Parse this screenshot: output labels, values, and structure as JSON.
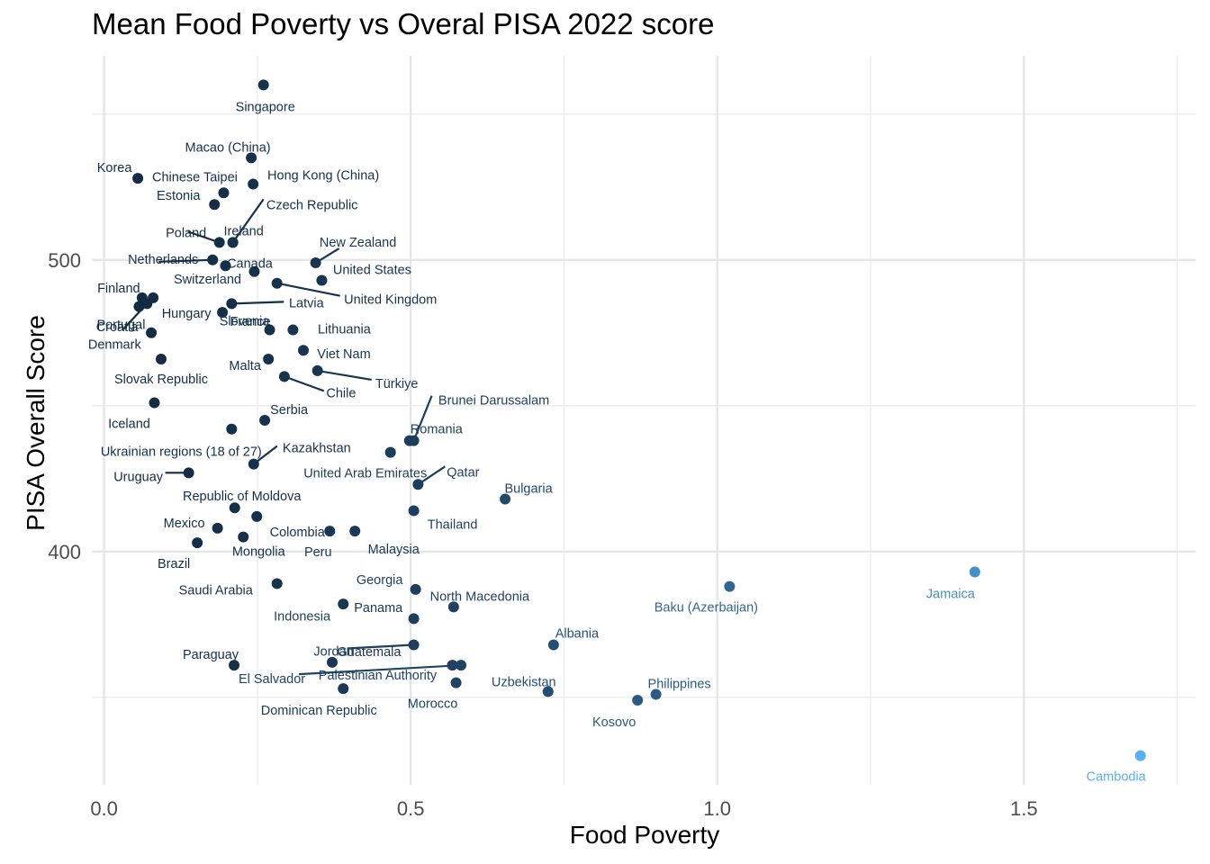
{
  "chart_data": {
    "type": "scatter",
    "title": "Mean Food Poverty vs Overal PISA 2022 score",
    "xlabel": "Food Poverty",
    "ylabel": "PISA Overall Score",
    "xlim": [
      -0.02,
      1.78
    ],
    "ylim": [
      320,
      570
    ],
    "x_ticks": [
      0.0,
      0.5,
      1.0,
      1.5
    ],
    "x_tick_labels": [
      "0.0",
      "0.5",
      "1.0",
      "1.5"
    ],
    "y_ticks": [
      400,
      500
    ],
    "y_tick_labels": [
      "400",
      "500"
    ],
    "grid": true,
    "color_scale": {
      "low": "#132b43",
      "high": "#56b1f7",
      "min": 0.0,
      "max": 1.7
    },
    "points": [
      {
        "label": "Singapore",
        "x": 0.26,
        "y": 560
      },
      {
        "label": "Macao (China)",
        "x": 0.24,
        "y": 535
      },
      {
        "label": "Korea",
        "x": 0.055,
        "y": 528
      },
      {
        "label": "Chinese Taipei",
        "x": 0.195,
        "y": 523
      },
      {
        "label": "Hong Kong (China)",
        "x": 0.243,
        "y": 526
      },
      {
        "label": "Estonia",
        "x": 0.18,
        "y": 519
      },
      {
        "label": "Czech Republic",
        "x": 0.21,
        "y": 506
      },
      {
        "label": "Poland",
        "x": 0.188,
        "y": 506
      },
      {
        "label": "Ireland",
        "x": 0.21,
        "y": 506
      },
      {
        "label": "New Zealand",
        "x": 0.345,
        "y": 499
      },
      {
        "label": "Netherlands",
        "x": 0.177,
        "y": 500
      },
      {
        "label": "Canada",
        "x": 0.198,
        "y": 498
      },
      {
        "label": "United States",
        "x": 0.355,
        "y": 493
      },
      {
        "label": "Switzerland",
        "x": 0.245,
        "y": 496
      },
      {
        "label": "United Kingdom",
        "x": 0.282,
        "y": 492
      },
      {
        "label": "Finland",
        "x": 0.062,
        "y": 487
      },
      {
        "label": "Latvia",
        "x": 0.208,
        "y": 485
      },
      {
        "label": "Portugal",
        "x": 0.057,
        "y": 484
      },
      {
        "label": "Hungary",
        "x": 0.08,
        "y": 487
      },
      {
        "label": "France",
        "x": 0.193,
        "y": 482
      },
      {
        "label": "Denmark",
        "x": 0.07,
        "y": 485
      },
      {
        "label": "Slovenia",
        "x": 0.27,
        "y": 476
      },
      {
        "label": "Lithuania",
        "x": 0.308,
        "y": 476
      },
      {
        "label": "Croatia",
        "x": 0.077,
        "y": 475
      },
      {
        "label": "Viet Nam",
        "x": 0.325,
        "y": 469
      },
      {
        "label": "Slovak Republic",
        "x": 0.093,
        "y": 466
      },
      {
        "label": "Türkiye",
        "x": 0.348,
        "y": 462
      },
      {
        "label": "Malta",
        "x": 0.268,
        "y": 466
      },
      {
        "label": "Chile",
        "x": 0.294,
        "y": 460
      },
      {
        "label": "Brunei Darussalam",
        "x": 0.505,
        "y": 438
      },
      {
        "label": "Iceland",
        "x": 0.082,
        "y": 451
      },
      {
        "label": "Serbia",
        "x": 0.262,
        "y": 445
      },
      {
        "label": "Romania",
        "x": 0.498,
        "y": 438
      },
      {
        "label": "Ukrainian regions (18 of 27)",
        "x": 0.208,
        "y": 442
      },
      {
        "label": "Kazakhstan",
        "x": 0.244,
        "y": 430
      },
      {
        "label": "United Arab Emirates",
        "x": 0.467,
        "y": 434
      },
      {
        "label": "Qatar",
        "x": 0.512,
        "y": 423
      },
      {
        "label": "Uruguay",
        "x": 0.138,
        "y": 427
      },
      {
        "label": "Bulgaria",
        "x": 0.654,
        "y": 418
      },
      {
        "label": "Republic of Moldova",
        "x": 0.213,
        "y": 415
      },
      {
        "label": "Thailand",
        "x": 0.505,
        "y": 414
      },
      {
        "label": "Colombia",
        "x": 0.249,
        "y": 412
      },
      {
        "label": "Mexico",
        "x": 0.185,
        "y": 408
      },
      {
        "label": "Peru",
        "x": 0.368,
        "y": 407
      },
      {
        "label": "Malaysia",
        "x": 0.409,
        "y": 407
      },
      {
        "label": "Mongolia",
        "x": 0.227,
        "y": 405
      },
      {
        "label": "Brazil",
        "x": 0.152,
        "y": 403
      },
      {
        "label": "Jamaica",
        "x": 1.42,
        "y": 393
      },
      {
        "label": "Baku (Azerbaijan)",
        "x": 1.02,
        "y": 388
      },
      {
        "label": "Georgia",
        "x": 0.508,
        "y": 387
      },
      {
        "label": "Saudi Arabia",
        "x": 0.282,
        "y": 389
      },
      {
        "label": "North Macedonia",
        "x": 0.57,
        "y": 381
      },
      {
        "label": "Panama",
        "x": 0.39,
        "y": 382
      },
      {
        "label": "Indonesia",
        "x": 0.505,
        "y": 377
      },
      {
        "label": "Albania",
        "x": 0.733,
        "y": 368
      },
      {
        "label": "Guatemala",
        "x": 0.372,
        "y": 362
      },
      {
        "label": "Jordan",
        "x": 0.505,
        "y": 368
      },
      {
        "label": "Paraguay",
        "x": 0.212,
        "y": 361
      },
      {
        "label": "Palestinian Authority",
        "x": 0.568,
        "y": 361
      },
      {
        "label": "El Salvador",
        "x": 0.582,
        "y": 361
      },
      {
        "label": "Morocco",
        "x": 0.574,
        "y": 355
      },
      {
        "label": "Philippines",
        "x": 0.9,
        "y": 351
      },
      {
        "label": "Uzbekistan",
        "x": 0.724,
        "y": 352
      },
      {
        "label": "Kosovo",
        "x": 0.87,
        "y": 349
      },
      {
        "label": "Dominican Republic",
        "x": 0.39,
        "y": 353
      },
      {
        "label": "Cambodia",
        "x": 1.69,
        "y": 330
      }
    ]
  }
}
